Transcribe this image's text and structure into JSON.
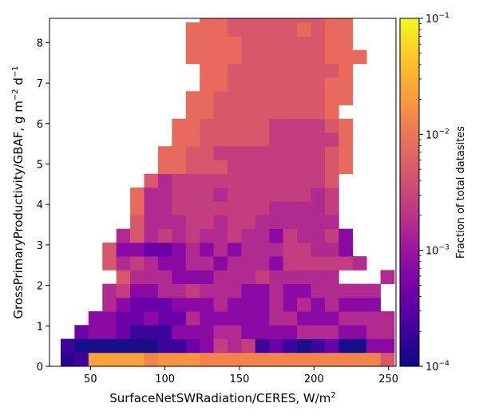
{
  "chart_data": {
    "type": "heatmap",
    "xlabel": "SurfaceNetSWRadiation/CERES,  W/m",
    "xlabel_sup": "2",
    "ylabel_parts": [
      "GrossPrimaryProductivity/GBAF,  g m",
      "−2",
      " d",
      "−1"
    ],
    "xlim": [
      22.5,
      255
    ],
    "ylim": [
      0,
      8.6
    ],
    "x_ticks": [
      50,
      100,
      150,
      200,
      250
    ],
    "y_ticks": [
      0,
      1,
      2,
      3,
      4,
      5,
      6,
      7,
      8
    ],
    "x_bin_edges_start": 30,
    "x_bin_width": 9.33,
    "y_bin_width": 0.34,
    "rows_bottom_to_top": [
      "a3ddddcbbbccccccccccccc8000",
      "32222223345767343234225500",
      "045543335556655556665566000",
      "005544544655555665556666000",
      "000654445556555656565550000",
      "000675566766655655666660000",
      "000086665556667666660006000",
      "000867655665666577777600000",
      "000855445656566677665000000",
      "000068676766766576675000000",
      "000008666776776666660000000",
      "000009667777777666670000000",
      "000009667776777777670000000",
      "000000867777777777780000000",
      "000000099888777777789000000",
      "000000099887777777789000000",
      "000000009988888777779000000",
      "000000009988888777789000000",
      "000000000998888888890000000",
      "000000000998888888899000000",
      "000000000099888888899000000",
      "000000000099888888889000000",
      "000000000999988888899900000",
      "000000000999988888899000000",
      "000000000999888889899000000",
      "000000000099888888899000000"
    ],
    "colorbar": {
      "label": "Fraction of total datasites",
      "scale": "log",
      "range": [
        0.0001,
        0.1
      ],
      "tick_base": "10",
      "tick_exponents": [
        "−4",
        "−3",
        "−2",
        "−1"
      ],
      "colormap": "plasma"
    }
  }
}
